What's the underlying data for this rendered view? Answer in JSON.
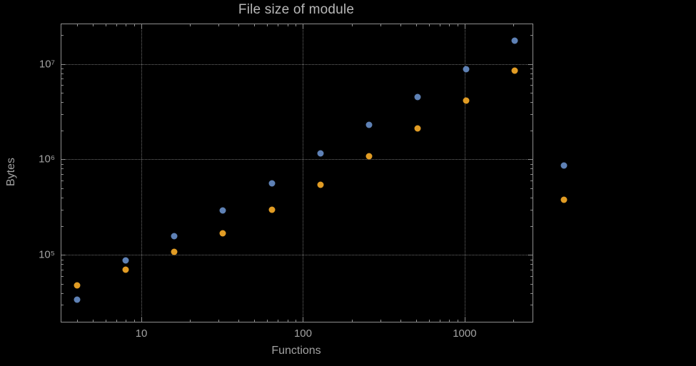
{
  "colors": {
    "background": "#000000",
    "frame": "#8f8f8f",
    "gridline": "#6e6e6e",
    "tick_text": "#a2a2a2",
    "title_text": "#b8b8b8",
    "series_blue": "#5e81b5",
    "series_orange": "#e19c24"
  },
  "chart_data": {
    "type": "scatter",
    "title": "File size of module",
    "xlabel": "Functions",
    "ylabel": "Bytes",
    "x_scale": "log",
    "y_scale": "log",
    "xlim": [
      3.2,
      2630
    ],
    "ylim": [
      20000,
      26000000
    ],
    "grid": true,
    "legend": "none",
    "x_ticks": [
      {
        "value": 10,
        "label": "10"
      },
      {
        "value": 100,
        "label": "100"
      },
      {
        "value": 1000,
        "label": "1000"
      }
    ],
    "y_ticks": [
      {
        "value": 100000,
        "label": "10⁵"
      },
      {
        "value": 1000000,
        "label": "10⁶"
      },
      {
        "value": 10000000,
        "label": "10⁷"
      }
    ],
    "x_minor_decades": [
      1,
      10,
      100,
      1000
    ],
    "y_minor_decades": [
      10000,
      100000,
      1000000,
      10000000
    ],
    "series": [
      {
        "name": "blue-series",
        "color": "#5e81b5",
        "x": [
          4,
          8,
          16,
          32,
          64,
          128,
          256,
          512,
          1024,
          2048,
          4096
        ],
        "y": [
          34000,
          88000,
          157000,
          290000,
          560000,
          1150000,
          2300000,
          4500000,
          8800000,
          17500000,
          870000
        ]
      },
      {
        "name": "orange-series",
        "color": "#e19c24",
        "x": [
          4,
          8,
          16,
          32,
          64,
          128,
          256,
          512,
          1024,
          2048,
          4096
        ],
        "y": [
          48000,
          70000,
          108000,
          170000,
          295000,
          545000,
          1080000,
          2100000,
          4100000,
          8500000,
          380000
        ]
      }
    ]
  }
}
